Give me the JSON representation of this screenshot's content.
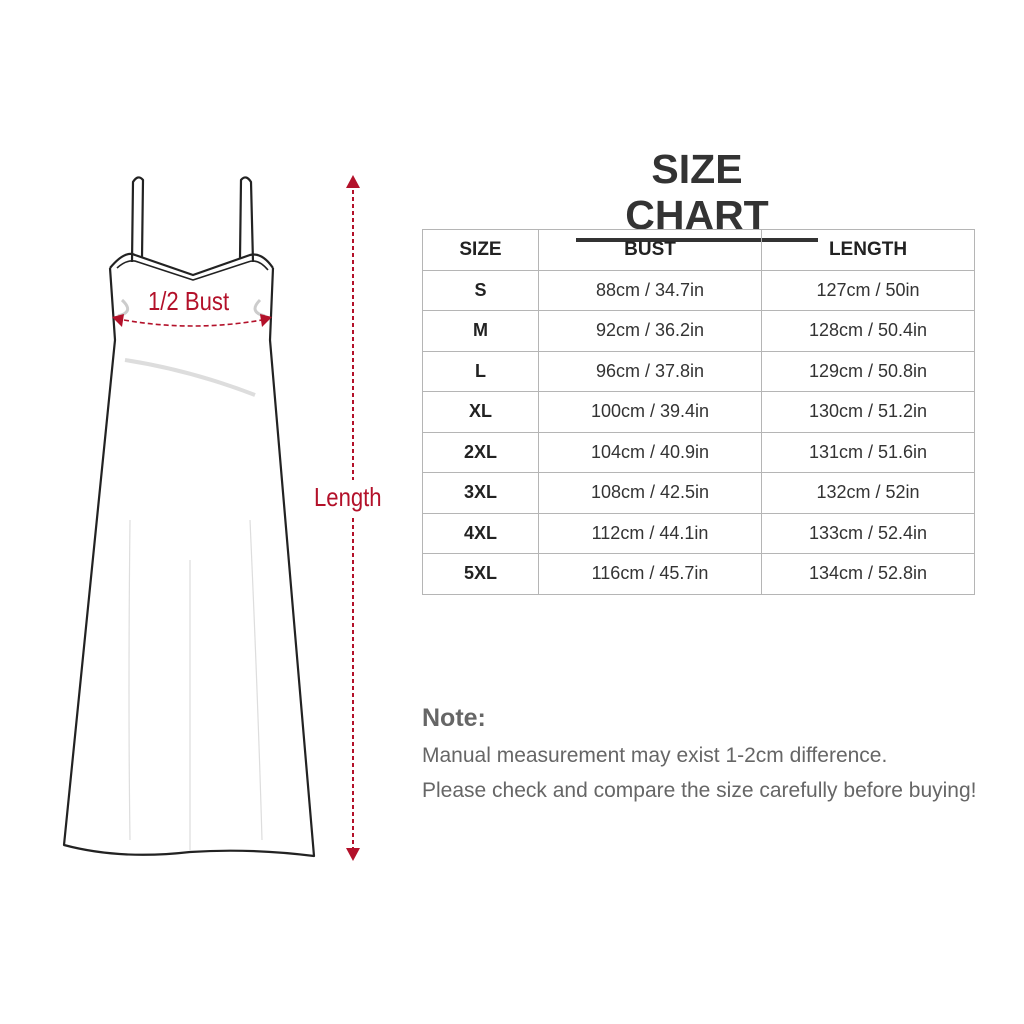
{
  "title": "SIZE CHART",
  "labels": {
    "bust": "1/2 Bust",
    "length": "Length"
  },
  "colors": {
    "measure": "#b3112a",
    "text": "#333333",
    "grid": "#b5b5b5"
  },
  "table": {
    "headers": [
      "SIZE",
      "BUST",
      "LENGTH"
    ],
    "rows": [
      [
        "S",
        "88cm / 34.7in",
        "127cm / 50in"
      ],
      [
        "M",
        "92cm / 36.2in",
        "128cm / 50.4in"
      ],
      [
        "L",
        "96cm / 37.8in",
        "129cm / 50.8in"
      ],
      [
        "XL",
        "100cm / 39.4in",
        "130cm / 51.2in"
      ],
      [
        "2XL",
        "104cm / 40.9in",
        "131cm / 51.6in"
      ],
      [
        "3XL",
        "108cm / 42.5in",
        "132cm / 52in"
      ],
      [
        "4XL",
        "112cm / 44.1in",
        "133cm / 52.4in"
      ],
      [
        "5XL",
        "116cm / 45.7in",
        "134cm / 52.8in"
      ]
    ]
  },
  "note": {
    "heading": "Note:",
    "lines": [
      "Manual measurement may exist 1-2cm difference.",
      "Please check and compare the size carefully before buying!"
    ]
  }
}
